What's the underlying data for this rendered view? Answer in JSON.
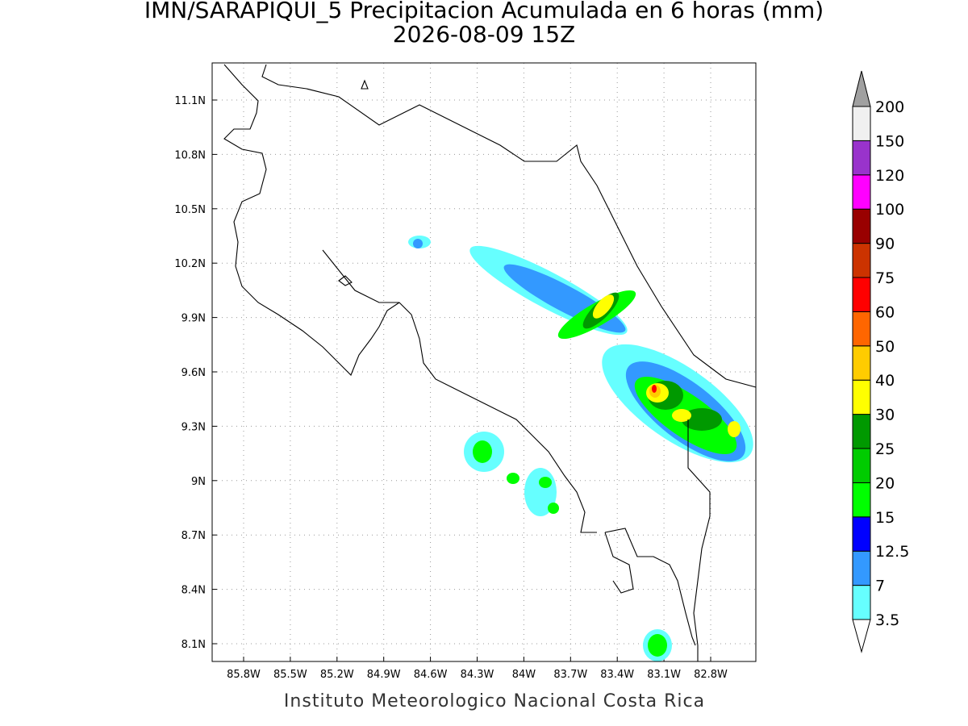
{
  "title": "IMN/SARAPIQUI_5 Precipitacion Acumulada en 6 horas (mm)",
  "subtitle": "2026-08-09 15Z",
  "lon_labels": [
    "85.8W",
    "85.5W",
    "85.2W",
    "84.9W",
    "84.6W",
    "84.3W",
    "84W",
    "83.7W",
    "83.4W",
    "83.1W",
    "82.8W"
  ],
  "lat_labels": [
    "11.1N",
    "10.8N",
    "10.5N",
    "10.2N",
    "9.9N",
    "9.6N",
    "9.3N",
    "9N",
    "8.7N",
    "8.4N",
    "8.1N"
  ],
  "colorbar": {
    "levels": [
      3.5,
      7,
      12.5,
      15,
      20,
      25,
      30,
      40,
      50,
      60,
      75,
      90,
      100,
      120,
      150,
      200
    ],
    "colors": [
      "#66ffff",
      "#3399ff",
      "#0000ff",
      "#00ff00",
      "#00cc00",
      "#009900",
      "#ffff00",
      "#ffcc00",
      "#ff6600",
      "#ff0000",
      "#cc3300",
      "#990000",
      "#ff00ff",
      "#9933cc",
      "#f0f0f0"
    ],
    "over_color": "#a0a0a0",
    "under_color": "#ffffff"
  },
  "footer": "Instituto Meteorologico Nacional Costa Rica"
}
